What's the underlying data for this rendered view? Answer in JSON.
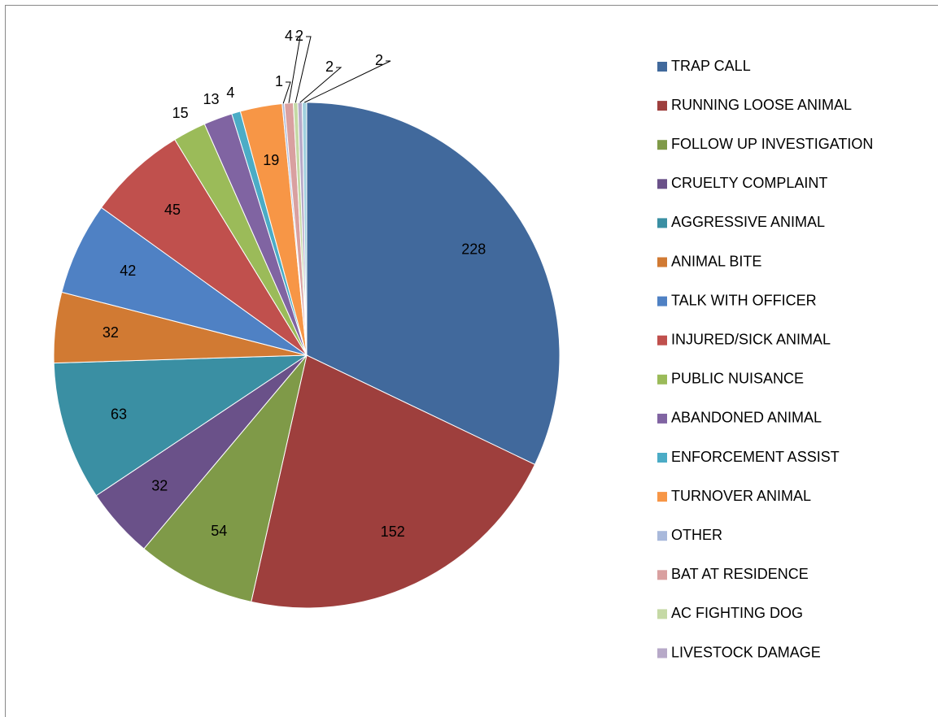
{
  "chart_data": {
    "type": "pie",
    "categories": [
      "TRAP CALL",
      "RUNNING LOOSE ANIMAL",
      "FOLLOW UP INVESTIGATION",
      "CRUELTY COMPLAINT",
      "AGGRESSIVE ANIMAL",
      "ANIMAL BITE",
      "TALK WITH OFFICER",
      "INJURED/SICK ANIMAL",
      "PUBLIC NUISANCE",
      "ABANDONED ANIMAL",
      "ENFORCEMENT ASSIST",
      "TURNOVER ANIMAL",
      "OTHER",
      "BAT AT RESIDENCE",
      "AC FIGHTING DOG",
      "LIVESTOCK DAMAGE",
      null
    ],
    "values": [
      228,
      152,
      54,
      32,
      63,
      32,
      42,
      45,
      15,
      13,
      4,
      19,
      1,
      4,
      2,
      2,
      2
    ],
    "colors": [
      "#41699c",
      "#9e3f3d",
      "#7f9a48",
      "#6a5189",
      "#3a8fa3",
      "#d17a33",
      "#4f81c4",
      "#c0504d",
      "#9bbb59",
      "#8064a2",
      "#4bacc6",
      "#f79646",
      "#a9b9db",
      "#d9a0a0",
      "#c5d9a5",
      "#b7a9c8",
      "#a0d0de"
    ],
    "legend": "right"
  }
}
